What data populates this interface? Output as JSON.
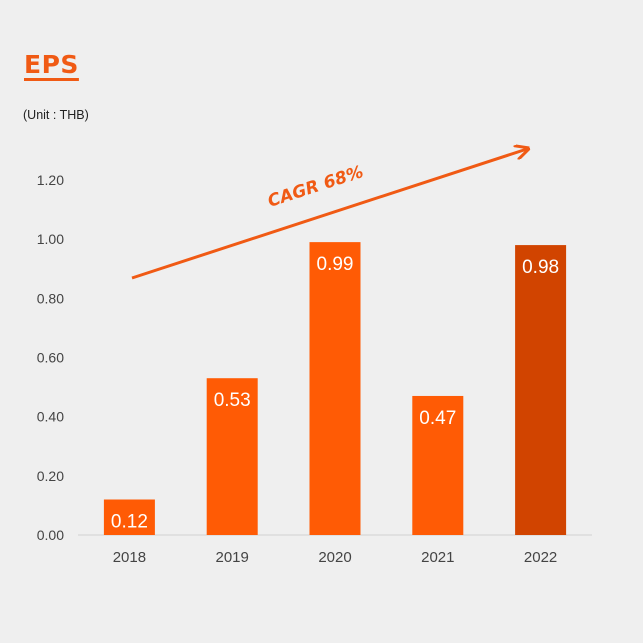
{
  "title": "EPS",
  "unit_note": "(Unit : THB)",
  "annotation": "CAGR 68%",
  "colors": {
    "accent": "#f05a14",
    "bar": "#ff5b05",
    "bar_highlight": "#d14400",
    "background": "#efefef"
  },
  "chart_data": {
    "type": "bar",
    "title": "EPS",
    "categories": [
      "2018",
      "2019",
      "2020",
      "2021",
      "2022"
    ],
    "values": [
      0.12,
      0.53,
      0.99,
      0.47,
      0.98
    ],
    "value_labels": [
      "0.12",
      "0.53",
      "0.99",
      "0.47",
      "0.98"
    ],
    "highlight_index": 4,
    "ylim": [
      0,
      1.2
    ],
    "yticks": [
      "0.00",
      "0.20",
      "0.40",
      "0.60",
      "0.80",
      "1.00",
      "1.20"
    ],
    "grid": false,
    "legend": "none",
    "annotation": "CAGR 68%"
  }
}
